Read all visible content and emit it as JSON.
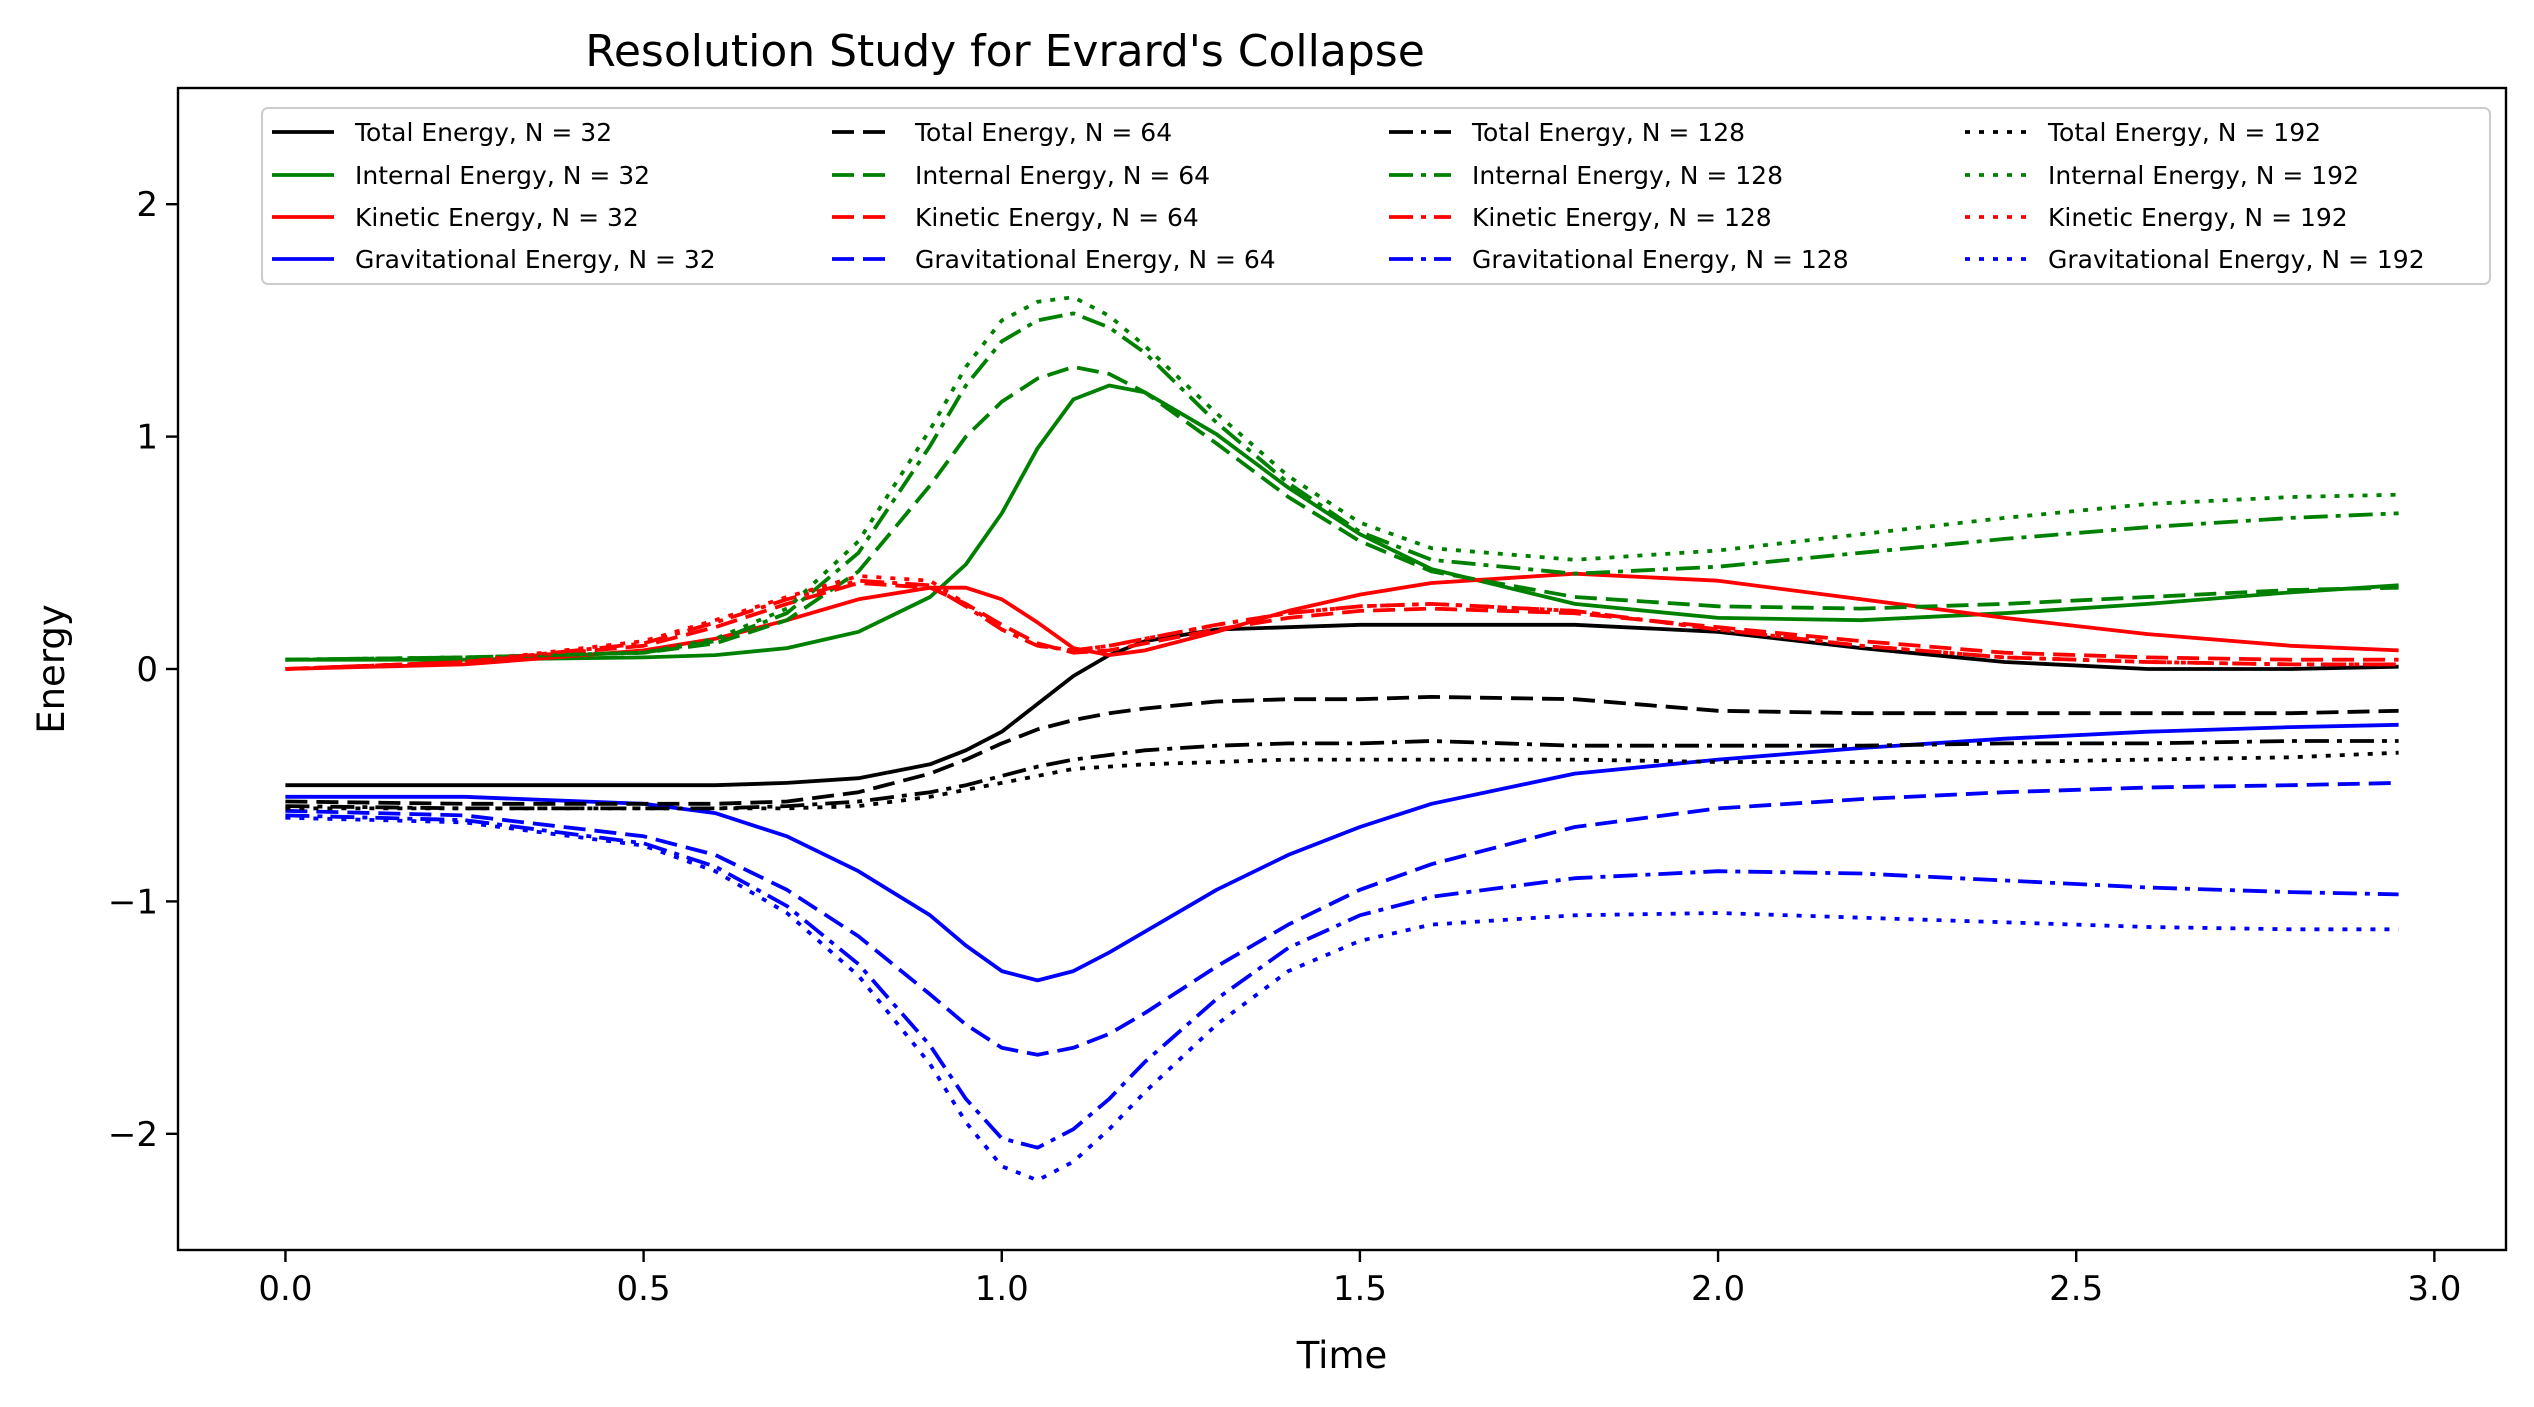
{
  "chart_data": {
    "type": "line",
    "title": "Resolution Study for Evrard's Collapse",
    "xlabel": "Time",
    "ylabel": "Energy",
    "xlim": [
      -0.15,
      3.1
    ],
    "ylim": [
      -2.5,
      2.5
    ],
    "xticks": [
      0.0,
      0.5,
      1.0,
      1.5,
      2.0,
      2.5,
      3.0
    ],
    "xtick_labels": [
      "0.0",
      "0.5",
      "1.0",
      "1.5",
      "2.0",
      "2.5",
      "3.0"
    ],
    "yticks": [
      -2,
      -1,
      0,
      1,
      2
    ],
    "ytick_labels": [
      "−2",
      "−1",
      "0",
      "1",
      "2"
    ],
    "legend_position": "top",
    "legend_columns": 4,
    "grid": false,
    "x": [
      0.0,
      0.25,
      0.5,
      0.6,
      0.7,
      0.8,
      0.9,
      0.95,
      1.0,
      1.05,
      1.1,
      1.15,
      1.2,
      1.3,
      1.4,
      1.5,
      1.6,
      1.8,
      2.0,
      2.2,
      2.4,
      2.6,
      2.8,
      2.95
    ],
    "series": [
      {
        "name": "Total Energy, N = 32",
        "color": "#000000",
        "dash": "solid",
        "values": [
          -0.5,
          -0.5,
          -0.5,
          -0.5,
          -0.49,
          -0.47,
          -0.41,
          -0.35,
          -0.27,
          -0.15,
          -0.03,
          0.06,
          0.12,
          0.17,
          0.18,
          0.19,
          0.19,
          0.19,
          0.16,
          0.09,
          0.03,
          0.0,
          0.0,
          0.01
        ]
      },
      {
        "name": "Internal Energy, N = 32",
        "color": "#008000",
        "dash": "solid",
        "values": [
          0.04,
          0.04,
          0.05,
          0.06,
          0.09,
          0.16,
          0.31,
          0.45,
          0.67,
          0.95,
          1.16,
          1.22,
          1.19,
          1.01,
          0.78,
          0.58,
          0.43,
          0.28,
          0.22,
          0.21,
          0.24,
          0.28,
          0.33,
          0.36
        ]
      },
      {
        "name": "Kinetic Energy, N = 32",
        "color": "#ff0000",
        "dash": "solid",
        "values": [
          0.0,
          0.02,
          0.08,
          0.13,
          0.21,
          0.3,
          0.35,
          0.35,
          0.3,
          0.2,
          0.09,
          0.06,
          0.08,
          0.16,
          0.25,
          0.32,
          0.37,
          0.41,
          0.38,
          0.3,
          0.22,
          0.15,
          0.1,
          0.08
        ]
      },
      {
        "name": "Gravitational Energy, N = 32",
        "color": "#0000ff",
        "dash": "solid",
        "values": [
          -0.55,
          -0.55,
          -0.58,
          -0.62,
          -0.72,
          -0.87,
          -1.06,
          -1.19,
          -1.3,
          -1.34,
          -1.3,
          -1.22,
          -1.13,
          -0.95,
          -0.8,
          -0.68,
          -0.58,
          -0.45,
          -0.39,
          -0.34,
          -0.3,
          -0.27,
          -0.25,
          -0.24
        ]
      },
      {
        "name": "Total Energy, N = 64",
        "color": "#000000",
        "dash": "dashed",
        "values": [
          -0.57,
          -0.58,
          -0.58,
          -0.58,
          -0.57,
          -0.53,
          -0.45,
          -0.39,
          -0.32,
          -0.26,
          -0.22,
          -0.19,
          -0.17,
          -0.14,
          -0.13,
          -0.13,
          -0.12,
          -0.13,
          -0.18,
          -0.19,
          -0.19,
          -0.19,
          -0.19,
          -0.18
        ]
      },
      {
        "name": "Internal Energy, N = 64",
        "color": "#008000",
        "dash": "dashed",
        "values": [
          0.04,
          0.05,
          0.07,
          0.11,
          0.21,
          0.42,
          0.79,
          1.0,
          1.15,
          1.25,
          1.3,
          1.27,
          1.19,
          0.97,
          0.74,
          0.55,
          0.42,
          0.31,
          0.27,
          0.26,
          0.28,
          0.31,
          0.34,
          0.35
        ]
      },
      {
        "name": "Kinetic Energy, N = 64",
        "color": "#ff0000",
        "dash": "dashed",
        "values": [
          0.0,
          0.03,
          0.1,
          0.18,
          0.28,
          0.37,
          0.35,
          0.28,
          0.19,
          0.11,
          0.07,
          0.08,
          0.11,
          0.17,
          0.22,
          0.25,
          0.26,
          0.24,
          0.18,
          0.12,
          0.07,
          0.05,
          0.04,
          0.04
        ]
      },
      {
        "name": "Gravitational Energy, N = 64",
        "color": "#0000ff",
        "dash": "dashed",
        "values": [
          -0.61,
          -0.63,
          -0.72,
          -0.8,
          -0.95,
          -1.15,
          -1.4,
          -1.53,
          -1.63,
          -1.66,
          -1.63,
          -1.57,
          -1.48,
          -1.28,
          -1.1,
          -0.95,
          -0.84,
          -0.68,
          -0.6,
          -0.56,
          -0.53,
          -0.51,
          -0.5,
          -0.49
        ]
      },
      {
        "name": "Total Energy, N = 128",
        "color": "#000000",
        "dash": "dashdot",
        "values": [
          -0.59,
          -0.6,
          -0.6,
          -0.6,
          -0.59,
          -0.57,
          -0.53,
          -0.5,
          -0.46,
          -0.42,
          -0.39,
          -0.37,
          -0.35,
          -0.33,
          -0.32,
          -0.32,
          -0.31,
          -0.33,
          -0.33,
          -0.33,
          -0.32,
          -0.32,
          -0.31,
          -0.31
        ]
      },
      {
        "name": "Internal Energy, N = 128",
        "color": "#008000",
        "dash": "dashdot",
        "values": [
          0.04,
          0.05,
          0.07,
          0.12,
          0.24,
          0.5,
          0.96,
          1.22,
          1.41,
          1.5,
          1.53,
          1.47,
          1.36,
          1.06,
          0.8,
          0.59,
          0.47,
          0.41,
          0.44,
          0.5,
          0.56,
          0.61,
          0.65,
          0.67
        ]
      },
      {
        "name": "Kinetic Energy, N = 128",
        "color": "#ff0000",
        "dash": "dashdot",
        "values": [
          0.0,
          0.03,
          0.11,
          0.2,
          0.3,
          0.38,
          0.36,
          0.27,
          0.17,
          0.1,
          0.08,
          0.1,
          0.13,
          0.19,
          0.24,
          0.27,
          0.28,
          0.25,
          0.17,
          0.1,
          0.05,
          0.03,
          0.02,
          0.02
        ]
      },
      {
        "name": "Gravitational Energy, N = 128",
        "color": "#0000ff",
        "dash": "dashdot",
        "values": [
          -0.63,
          -0.65,
          -0.75,
          -0.85,
          -1.02,
          -1.27,
          -1.62,
          -1.85,
          -2.02,
          -2.06,
          -1.98,
          -1.85,
          -1.69,
          -1.42,
          -1.2,
          -1.06,
          -0.98,
          -0.9,
          -0.87,
          -0.88,
          -0.91,
          -0.94,
          -0.96,
          -0.97
        ]
      },
      {
        "name": "Total Energy, N = 192",
        "color": "#000000",
        "dash": "dotted",
        "values": [
          -0.6,
          -0.6,
          -0.6,
          -0.6,
          -0.6,
          -0.59,
          -0.55,
          -0.52,
          -0.49,
          -0.46,
          -0.43,
          -0.42,
          -0.41,
          -0.4,
          -0.39,
          -0.39,
          -0.39,
          -0.39,
          -0.4,
          -0.4,
          -0.4,
          -0.39,
          -0.38,
          -0.36
        ]
      },
      {
        "name": "Internal Energy, N = 192",
        "color": "#008000",
        "dash": "dotted",
        "values": [
          0.04,
          0.05,
          0.07,
          0.13,
          0.26,
          0.55,
          1.03,
          1.3,
          1.5,
          1.58,
          1.6,
          1.52,
          1.39,
          1.1,
          0.83,
          0.63,
          0.52,
          0.47,
          0.51,
          0.58,
          0.65,
          0.71,
          0.74,
          0.75
        ]
      },
      {
        "name": "Kinetic Energy, N = 192",
        "color": "#ff0000",
        "dash": "dotted",
        "values": [
          0.0,
          0.03,
          0.12,
          0.21,
          0.31,
          0.4,
          0.38,
          0.28,
          0.17,
          0.1,
          0.08,
          0.1,
          0.13,
          0.19,
          0.24,
          0.27,
          0.28,
          0.25,
          0.17,
          0.1,
          0.05,
          0.03,
          0.02,
          0.02
        ]
      },
      {
        "name": "Gravitational Energy, N = 192",
        "color": "#0000ff",
        "dash": "dotted",
        "values": [
          -0.64,
          -0.66,
          -0.76,
          -0.87,
          -1.05,
          -1.32,
          -1.7,
          -1.95,
          -2.14,
          -2.2,
          -2.12,
          -1.98,
          -1.82,
          -1.53,
          -1.3,
          -1.17,
          -1.1,
          -1.06,
          -1.05,
          -1.07,
          -1.09,
          -1.11,
          -1.12,
          -1.12
        ]
      }
    ]
  }
}
